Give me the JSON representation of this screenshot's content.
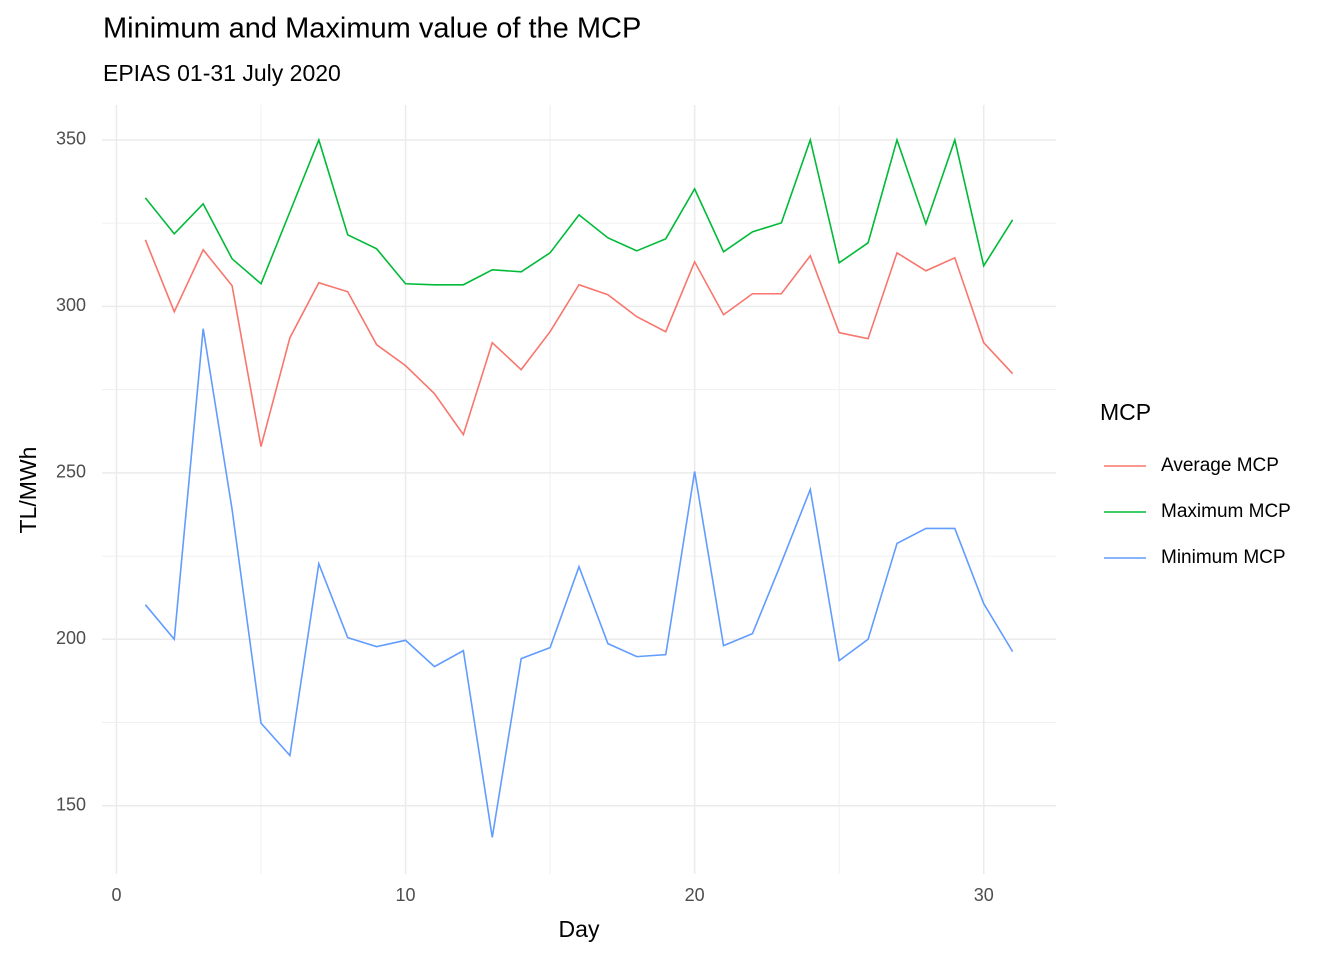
{
  "chart_data": {
    "type": "line",
    "title": "Minimum and Maximum value of the MCP",
    "subtitle": "EPIAS 01-31 July 2020",
    "x_label": "Day",
    "y_label": "TL/MWh",
    "legend_title": "MCP",
    "x": [
      1,
      2,
      3,
      4,
      5,
      6,
      7,
      8,
      9,
      10,
      11,
      12,
      13,
      14,
      15,
      16,
      17,
      18,
      19,
      20,
      21,
      22,
      23,
      24,
      25,
      26,
      27,
      28,
      29,
      30,
      31
    ],
    "series": [
      {
        "name": "Average MCP",
        "color": "#f8766d",
        "values": [
          320,
          298.4,
          317,
          306.2,
          257.9,
          290.6,
          307.1,
          304.4,
          288.5,
          282.2,
          273.8,
          261.5,
          289.1,
          281,
          292.4,
          306.5,
          303.5,
          296.9,
          292.4,
          313.4,
          297.5,
          303.8,
          303.8,
          315.2,
          292.1,
          290.3,
          316.1,
          310.7,
          314.6,
          289.1,
          279.8
        ]
      },
      {
        "name": "Maximum MCP",
        "color": "#00ba38",
        "values": [
          332.6,
          321.8,
          330.8,
          314.3,
          306.8,
          328.4,
          350,
          321.5,
          317.3,
          306.8,
          306.5,
          306.5,
          311,
          310.4,
          316.1,
          327.5,
          320.6,
          316.7,
          320.3,
          335.3,
          316.4,
          322.4,
          325.1,
          350,
          313.1,
          319.1,
          350,
          324.8,
          350,
          312.2,
          326
        ]
      },
      {
        "name": "Minimum MCP",
        "color": "#619cff",
        "values": [
          210.4,
          200,
          293.3,
          239,
          174.8,
          165.1,
          222.7,
          200.5,
          197.8,
          199.7,
          191.8,
          196.6,
          140.5,
          194.2,
          197.5,
          221.8,
          198.7,
          194.8,
          195.4,
          250.4,
          198.1,
          201.7,
          223,
          245,
          193.6,
          200,
          228.8,
          233.3,
          233.3,
          210.7,
          196.3
        ]
      }
    ],
    "xlim": [
      -0.5,
      32.5
    ],
    "xticks": [
      0,
      10,
      20,
      30
    ],
    "ylim": [
      129.5,
      360.5
    ],
    "yticks": [
      150,
      200,
      250,
      300,
      350
    ],
    "grid": true,
    "legend_position": "right"
  }
}
